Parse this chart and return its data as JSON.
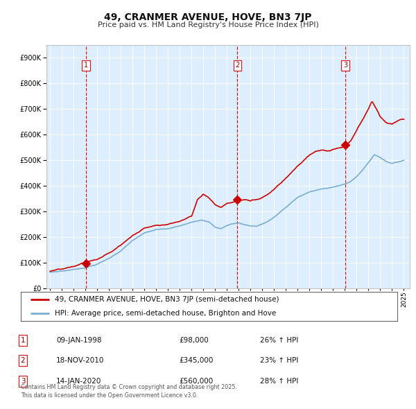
{
  "title": "49, CRANMER AVENUE, HOVE, BN3 7JP",
  "subtitle": "Price paid vs. HM Land Registry's House Price Index (HPI)",
  "sale_dates_decimal": [
    1998.03,
    2010.88,
    2020.04
  ],
  "sale_prices": [
    98000,
    345000,
    560000
  ],
  "sale_labels": [
    "1",
    "2",
    "3"
  ],
  "sale_info": [
    {
      "label": "1",
      "date": "09-JAN-1998",
      "price": "£98,000",
      "pct": "26% ↑ HPI"
    },
    {
      "label": "2",
      "date": "18-NOV-2010",
      "price": "£345,000",
      "pct": "23% ↑ HPI"
    },
    {
      "label": "3",
      "date": "14-JAN-2020",
      "price": "£560,000",
      "pct": "28% ↑ HPI"
    }
  ],
  "legend_line1": "49, CRANMER AVENUE, HOVE, BN3 7JP (semi-detached house)",
  "legend_line2": "HPI: Average price, semi-detached house, Brighton and Hove",
  "footer": "Contains HM Land Registry data © Crown copyright and database right 2025.\nThis data is licensed under the Open Government Licence v3.0.",
  "line_color_red": "#cc0000",
  "line_color_blue": "#7aadcf",
  "bg_color": "#ddeeff",
  "grid_color": "#ffffff",
  "ylim": [
    0,
    950000
  ],
  "yticks": [
    0,
    100000,
    200000,
    300000,
    400000,
    500000,
    600000,
    700000,
    800000,
    900000
  ],
  "xlim_start": 1994.7,
  "xlim_end": 2025.5,
  "xticks": [
    1995,
    1996,
    1997,
    1998,
    1999,
    2000,
    2001,
    2002,
    2003,
    2004,
    2005,
    2006,
    2007,
    2008,
    2009,
    2010,
    2011,
    2012,
    2013,
    2014,
    2015,
    2016,
    2017,
    2018,
    2019,
    2020,
    2021,
    2022,
    2023,
    2024,
    2025
  ]
}
